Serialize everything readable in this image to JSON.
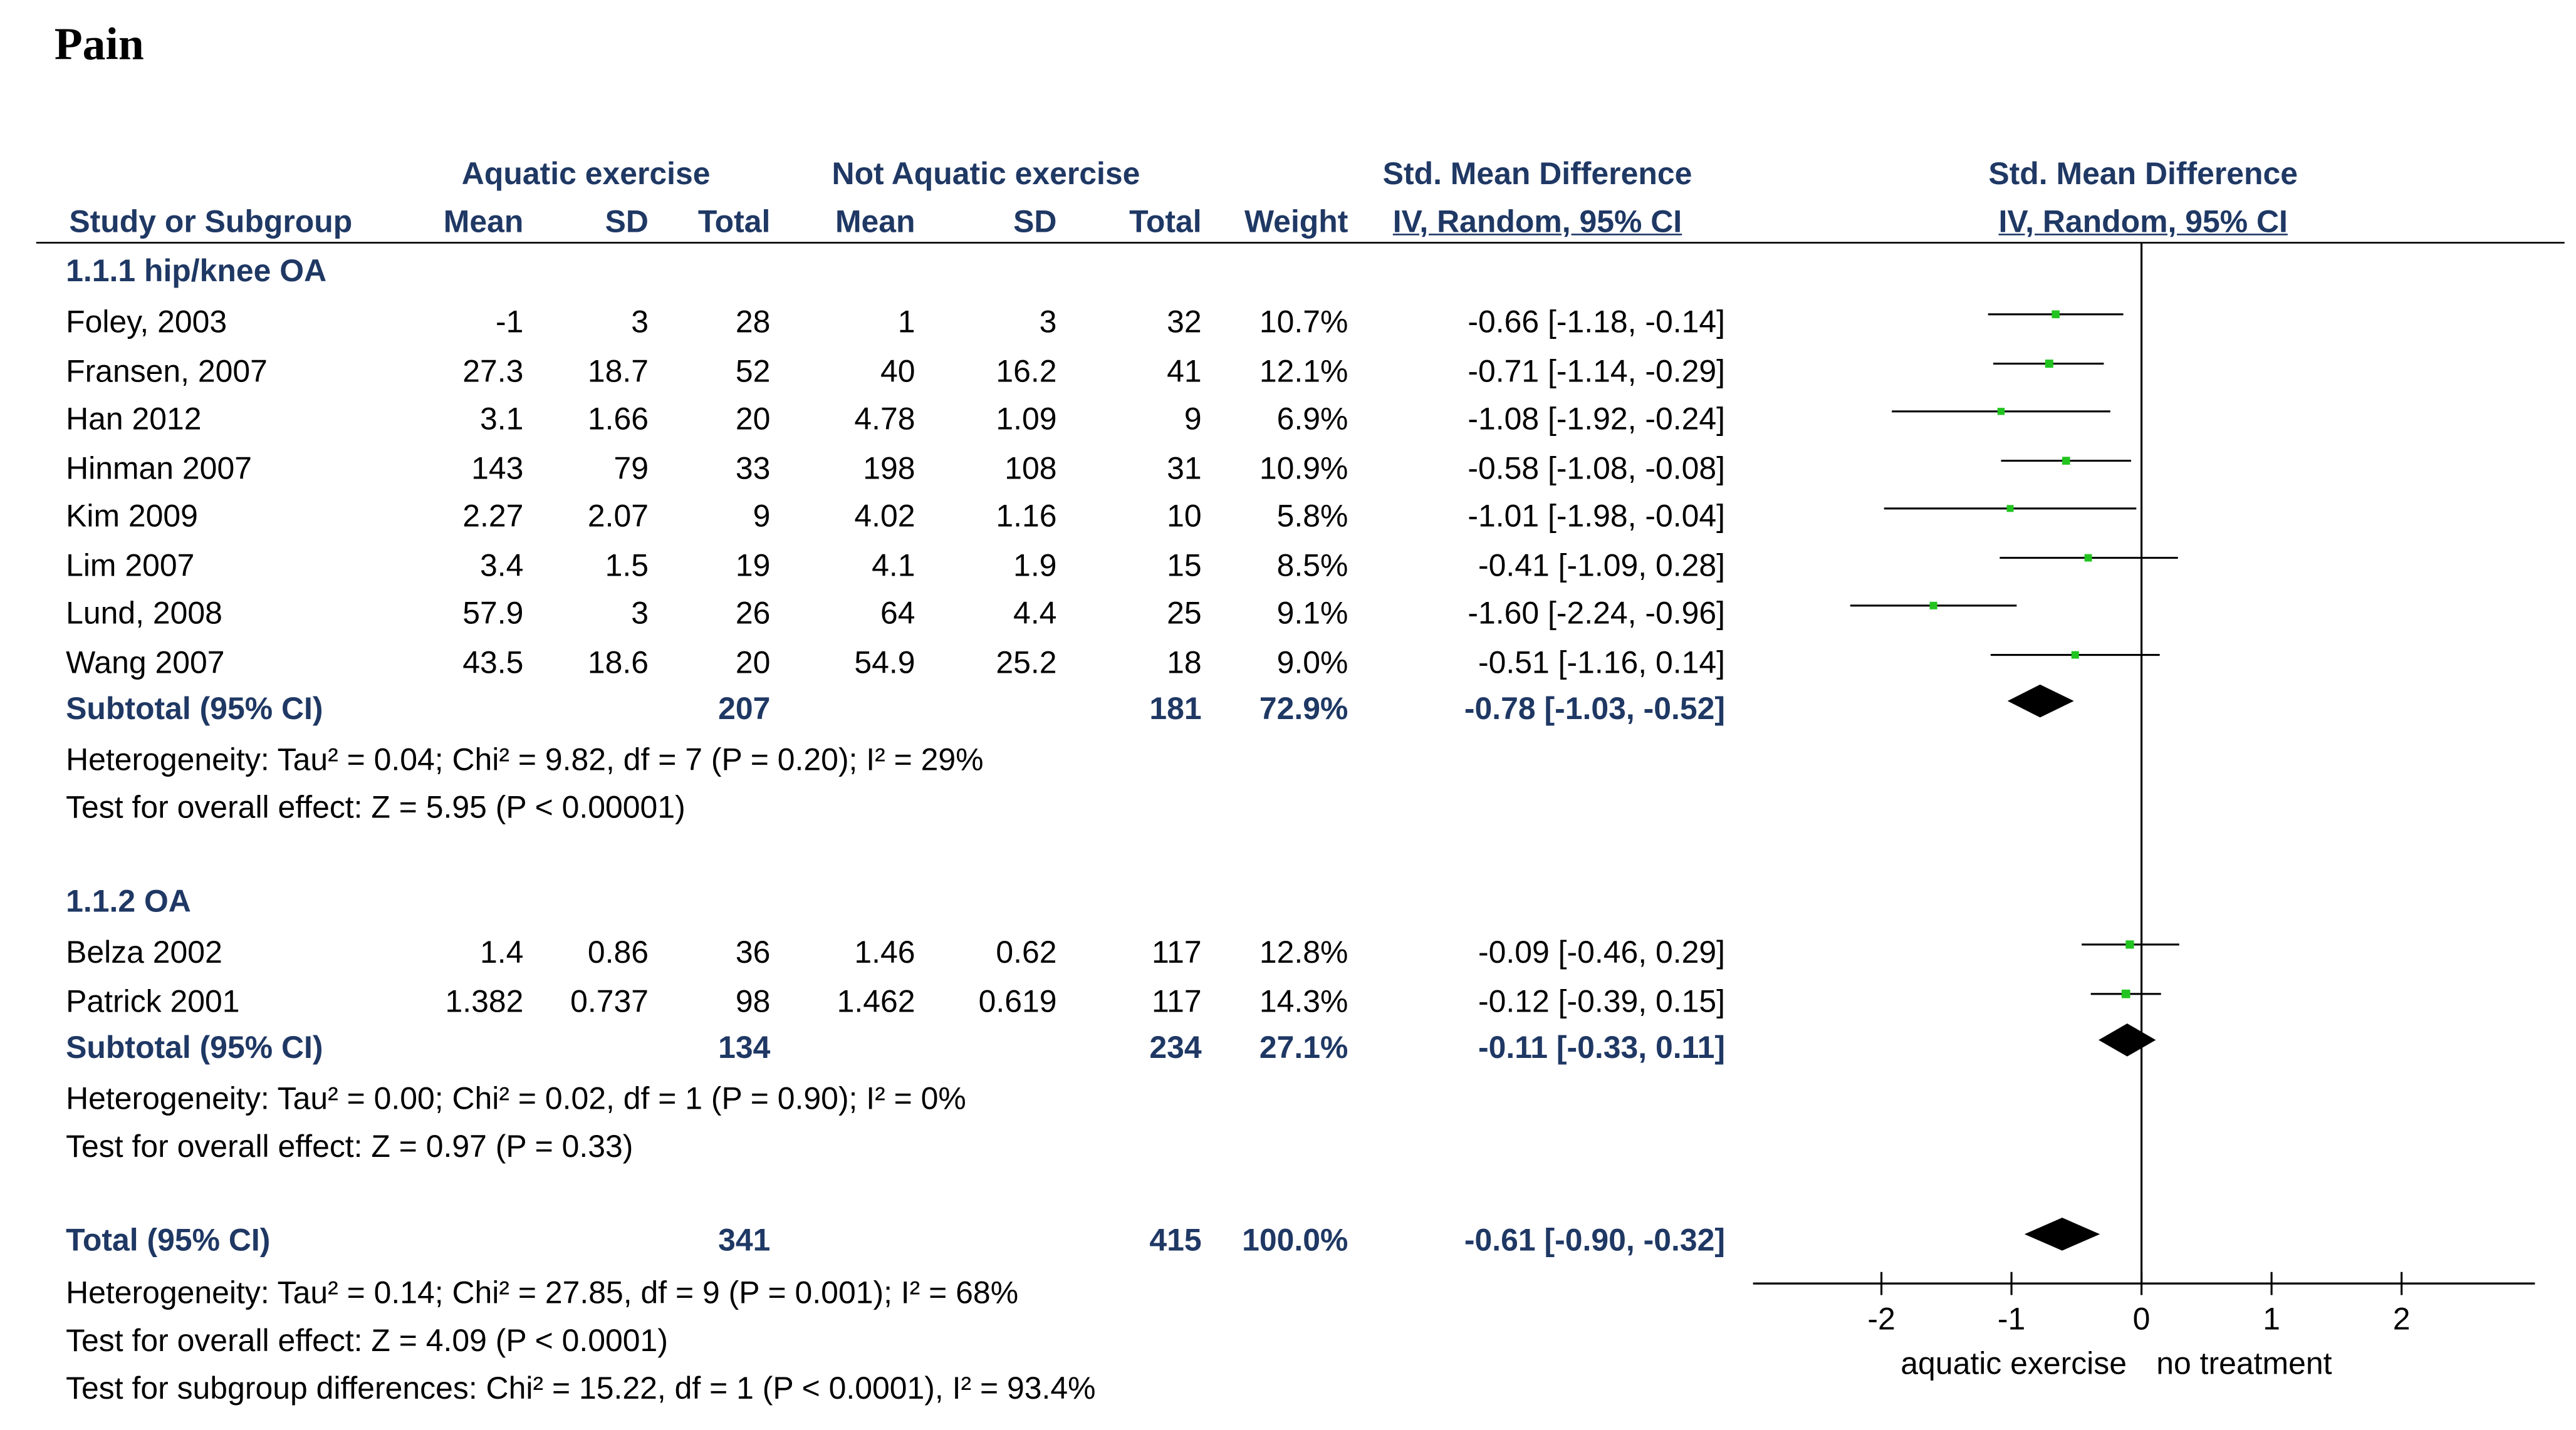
{
  "title": "Pain",
  "headers": {
    "group_exp": "Aquatic exercise",
    "group_ctl": "Not Aquatic exercise",
    "smd_table": "Std. Mean Difference",
    "smd_table_method": "IV, Random, 95% CI",
    "smd_plot": "Std. Mean Difference",
    "smd_plot_method": "IV, Random, 95% CI",
    "study": "Study or Subgroup",
    "mean_e": "Mean",
    "sd_e": "SD",
    "total_e": "Total",
    "mean_c": "Mean",
    "sd_c": "SD",
    "total_c": "Total",
    "weight": "Weight"
  },
  "subgroups": [
    {
      "label": "1.1.1 hip/knee OA",
      "studies": [
        {
          "name": "Foley, 2003",
          "mean_e": "-1",
          "sd_e": "3",
          "n_e": "28",
          "mean_c": "1",
          "sd_c": "3",
          "n_c": "32",
          "weight": "10.7%",
          "ci": "-0.66 [-1.18, -0.14]"
        },
        {
          "name": "Fransen, 2007",
          "mean_e": "27.3",
          "sd_e": "18.7",
          "n_e": "52",
          "mean_c": "40",
          "sd_c": "16.2",
          "n_c": "41",
          "weight": "12.1%",
          "ci": "-0.71 [-1.14, -0.29]"
        },
        {
          "name": "Han 2012",
          "mean_e": "3.1",
          "sd_e": "1.66",
          "n_e": "20",
          "mean_c": "4.78",
          "sd_c": "1.09",
          "n_c": "9",
          "weight": "6.9%",
          "ci": "-1.08 [-1.92, -0.24]"
        },
        {
          "name": "Hinman 2007",
          "mean_e": "143",
          "sd_e": "79",
          "n_e": "33",
          "mean_c": "198",
          "sd_c": "108",
          "n_c": "31",
          "weight": "10.9%",
          "ci": "-0.58 [-1.08, -0.08]"
        },
        {
          "name": "Kim 2009",
          "mean_e": "2.27",
          "sd_e": "2.07",
          "n_e": "9",
          "mean_c": "4.02",
          "sd_c": "1.16",
          "n_c": "10",
          "weight": "5.8%",
          "ci": "-1.01 [-1.98, -0.04]"
        },
        {
          "name": "Lim 2007",
          "mean_e": "3.4",
          "sd_e": "1.5",
          "n_e": "19",
          "mean_c": "4.1",
          "sd_c": "1.9",
          "n_c": "15",
          "weight": "8.5%",
          "ci": "-0.41 [-1.09, 0.28]"
        },
        {
          "name": "Lund, 2008",
          "mean_e": "57.9",
          "sd_e": "3",
          "n_e": "26",
          "mean_c": "64",
          "sd_c": "4.4",
          "n_c": "25",
          "weight": "9.1%",
          "ci": "-1.60 [-2.24, -0.96]"
        },
        {
          "name": "Wang 2007",
          "mean_e": "43.5",
          "sd_e": "18.6",
          "n_e": "20",
          "mean_c": "54.9",
          "sd_c": "25.2",
          "n_c": "18",
          "weight": "9.0%",
          "ci": "-0.51 [-1.16, 0.14]"
        }
      ],
      "subtotal": {
        "label": "Subtotal (95% CI)",
        "n_e": "207",
        "n_c": "181",
        "weight": "72.9%",
        "ci": "-0.78 [-1.03, -0.52]"
      },
      "heterogeneity": "Heterogeneity: Tau² = 0.04; Chi² = 9.82, df = 7 (P = 0.20); I² = 29%",
      "overall": "Test for overall effect: Z = 5.95 (P < 0.00001)"
    },
    {
      "label": "1.1.2 OA",
      "studies": [
        {
          "name": "Belza 2002",
          "mean_e": "1.4",
          "sd_e": "0.86",
          "n_e": "36",
          "mean_c": "1.46",
          "sd_c": "0.62",
          "n_c": "117",
          "weight": "12.8%",
          "ci": "-0.09 [-0.46, 0.29]"
        },
        {
          "name": "Patrick 2001",
          "mean_e": "1.382",
          "sd_e": "0.737",
          "n_e": "98",
          "mean_c": "1.462",
          "sd_c": "0.619",
          "n_c": "117",
          "weight": "14.3%",
          "ci": "-0.12 [-0.39, 0.15]"
        }
      ],
      "subtotal": {
        "label": "Subtotal (95% CI)",
        "n_e": "134",
        "n_c": "234",
        "weight": "27.1%",
        "ci": "-0.11 [-0.33, 0.11]"
      },
      "heterogeneity": "Heterogeneity: Tau² = 0.00; Chi² = 0.02, df = 1 (P = 0.90); I² = 0%",
      "overall": "Test for overall effect: Z = 0.97 (P = 0.33)"
    }
  ],
  "total": {
    "label": "Total (95% CI)",
    "n_e": "341",
    "n_c": "415",
    "weight": "100.0%",
    "ci": "-0.61 [-0.90, -0.32]",
    "heterogeneity": "Heterogeneity: Tau² = 0.14; Chi² = 27.85, df = 9 (P = 0.001); I² = 68%",
    "overall": "Test for overall effect: Z = 4.09 (P < 0.0001)",
    "subgroup_diff": "Test for subgroup differences: Chi² = 15.22, df = 1 (P < 0.0001), I² = 93.4%"
  },
  "axis": {
    "ticks": [
      "-2",
      "-1",
      "0",
      "1",
      "2"
    ],
    "left_label": "aquatic exercise",
    "right_label": "no treatment"
  },
  "colors": {
    "text": "#000000",
    "header": "#1f3864",
    "point": "#22c41f",
    "line": "#000000"
  },
  "chart_data": {
    "type": "forest",
    "title": "Pain",
    "xlim": [
      -3,
      3
    ],
    "ticks": [
      -2,
      -1,
      0,
      1,
      2
    ],
    "xlabel_left": "aquatic exercise",
    "xlabel_right": "no treatment",
    "studies": [
      {
        "name": "Foley, 2003",
        "est": -0.66,
        "lo": -1.18,
        "hi": -0.14,
        "weight": 10.7
      },
      {
        "name": "Fransen, 2007",
        "est": -0.71,
        "lo": -1.14,
        "hi": -0.29,
        "weight": 12.1
      },
      {
        "name": "Han 2012",
        "est": -1.08,
        "lo": -1.92,
        "hi": -0.24,
        "weight": 6.9
      },
      {
        "name": "Hinman 2007",
        "est": -0.58,
        "lo": -1.08,
        "hi": -0.08,
        "weight": 10.9
      },
      {
        "name": "Kim 2009",
        "est": -1.01,
        "lo": -1.98,
        "hi": -0.04,
        "weight": 5.8
      },
      {
        "name": "Lim 2007",
        "est": -0.41,
        "lo": -1.09,
        "hi": 0.28,
        "weight": 8.5
      },
      {
        "name": "Lund, 2008",
        "est": -1.6,
        "lo": -2.24,
        "hi": -0.96,
        "weight": 9.1
      },
      {
        "name": "Wang 2007",
        "est": -0.51,
        "lo": -1.16,
        "hi": 0.14,
        "weight": 9.0
      },
      {
        "name": "Belza 2002",
        "est": -0.09,
        "lo": -0.46,
        "hi": 0.29,
        "weight": 12.8
      },
      {
        "name": "Patrick 2001",
        "est": -0.12,
        "lo": -0.39,
        "hi": 0.15,
        "weight": 14.3
      }
    ],
    "diamonds": [
      {
        "name": "Subtotal 1.1.1",
        "est": -0.78,
        "lo": -1.03,
        "hi": -0.52
      },
      {
        "name": "Subtotal 1.1.2",
        "est": -0.11,
        "lo": -0.33,
        "hi": 0.11
      },
      {
        "name": "Total",
        "est": -0.61,
        "lo": -0.9,
        "hi": -0.32
      }
    ]
  }
}
